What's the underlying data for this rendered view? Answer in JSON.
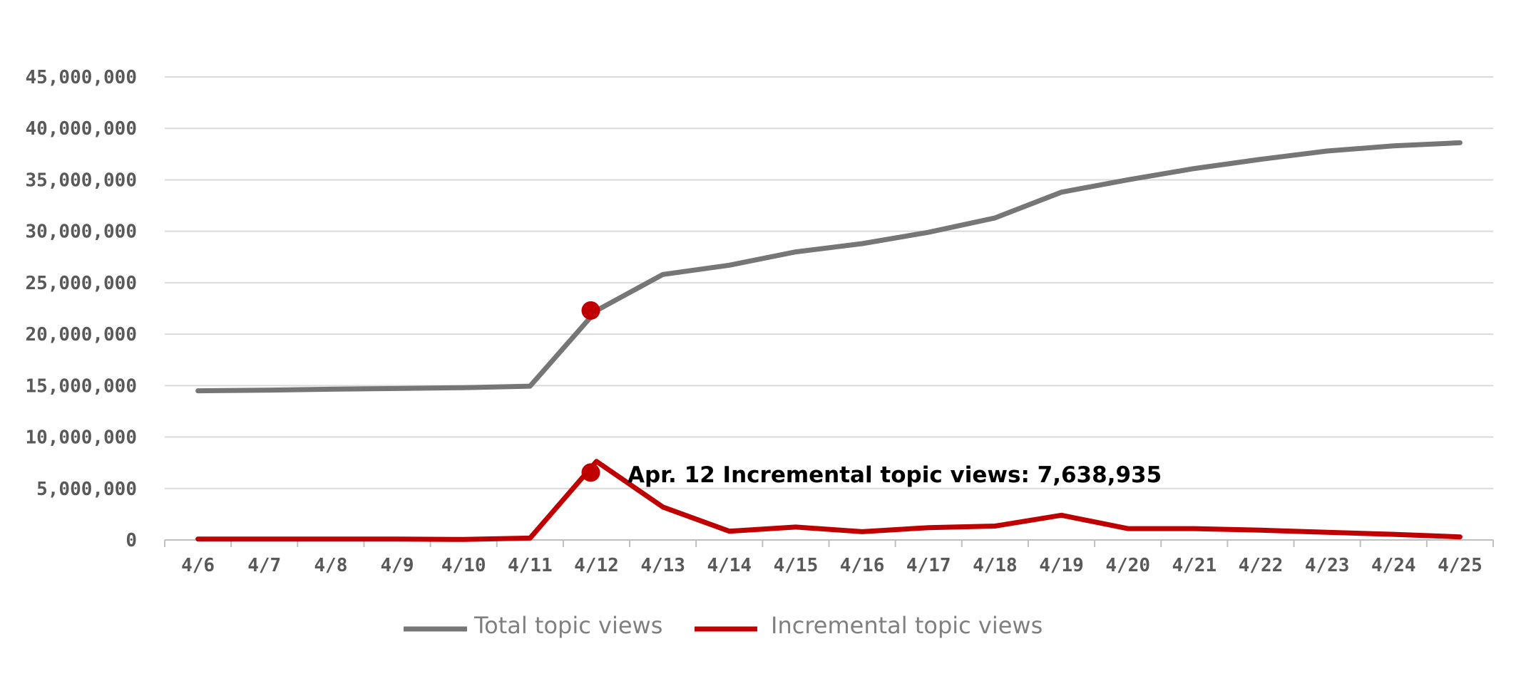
{
  "chart_data": {
    "type": "line",
    "title": "",
    "xlabel": "",
    "ylabel": "",
    "categories": [
      "4/6",
      "4/7",
      "4/8",
      "4/9",
      "4/10",
      "4/11",
      "4/12",
      "4/13",
      "4/14",
      "4/15",
      "4/16",
      "4/17",
      "4/18",
      "4/19",
      "4/20",
      "4/21",
      "4/22",
      "4/23",
      "4/24",
      "4/25"
    ],
    "ylim": [
      0,
      45000000
    ],
    "yticks": [
      0,
      5000000,
      10000000,
      15000000,
      20000000,
      25000000,
      30000000,
      35000000,
      40000000,
      45000000
    ],
    "ytick_labels": [
      "0",
      "5,000,000",
      "10,000,000",
      "15,000,000",
      "20,000,000",
      "25,000,000",
      "30,000,000",
      "35,000,000",
      "40,000,000",
      "45,000,000"
    ],
    "grid": true,
    "legend_position": "bottom",
    "series": [
      {
        "name": "Total topic views",
        "color": "#767676",
        "values": [
          14500000,
          14550000,
          14650000,
          14720000,
          14800000,
          14950000,
          22300000,
          25800000,
          26700000,
          28000000,
          28800000,
          29900000,
          31300000,
          33800000,
          35000000,
          36100000,
          37000000,
          37800000,
          38300000,
          38600000
        ],
        "highlight_index": 6
      },
      {
        "name": "Incremental topic views",
        "color": "#c00000",
        "values": [
          90000,
          90000,
          90000,
          90000,
          50000,
          180000,
          7638935,
          3200000,
          850000,
          1250000,
          800000,
          1200000,
          1350000,
          2400000,
          1100000,
          1100000,
          950000,
          750000,
          550000,
          300000
        ],
        "highlight_index": 6
      }
    ],
    "annotations": [
      {
        "text": "Apr. 12 Incremental topic views: 7,638,935",
        "series_index": 1,
        "category_index": 6
      }
    ]
  }
}
